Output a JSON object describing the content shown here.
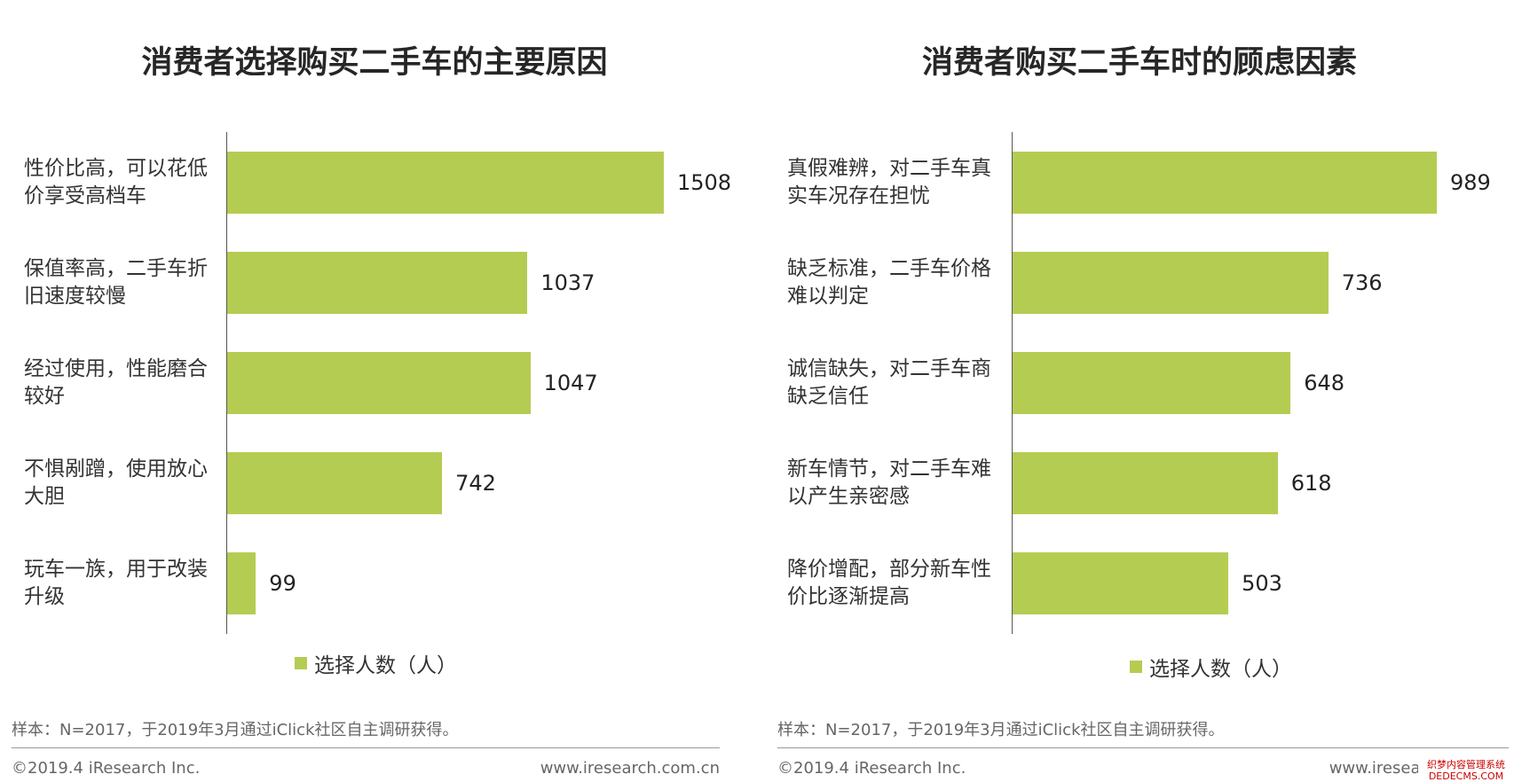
{
  "chart_data": [
    {
      "type": "bar",
      "orientation": "horizontal",
      "title": "消费者选择购买二手车的主要原因",
      "categories": [
        "性价比高，可以花低价享受高档车",
        "保值率高，二手车折旧速度较慢",
        "经过使用，性能磨合较好",
        "不惧剐蹭，使用放心大胆",
        "玩车一族，用于改装升级"
      ],
      "series": [
        {
          "name": "选择人数（人）",
          "color": "#b5cc52",
          "values": [
            1508,
            1037,
            1047,
            742,
            99
          ]
        }
      ],
      "legend": "bottom"
    },
    {
      "type": "bar",
      "orientation": "horizontal",
      "title": "消费者购买二手车时的顾虑因素",
      "categories": [
        "真假难辨，对二手车真实车况存在担忧",
        "缺乏标准，二手车价格难以判定",
        "诚信缺失，对二手车商缺乏信任",
        "新车情节，对二手车难以产生亲密感",
        "降价增配，部分新车性价比逐渐提高"
      ],
      "series": [
        {
          "name": "选择人数（人）",
          "color": "#b5cc52",
          "values": [
            989,
            736,
            648,
            618,
            503
          ]
        }
      ],
      "legend": "bottom"
    }
  ],
  "footer": [
    {
      "note": "样本：N=2017，于2019年3月通过iClick社区自主调研获得。",
      "copyright": "©2019.4 iResearch Inc.",
      "website": "www.iresearch.com.cn"
    },
    {
      "note": "样本：N=2017，于2019年3月通过iClick社区自主调研获得。",
      "copyright": "©2019.4 iResearch Inc.",
      "website": "www.iresearch.com.cn"
    }
  ],
  "watermark": {
    "line1": "织梦内容管理系统",
    "line2": "DEDECMS.COM"
  }
}
